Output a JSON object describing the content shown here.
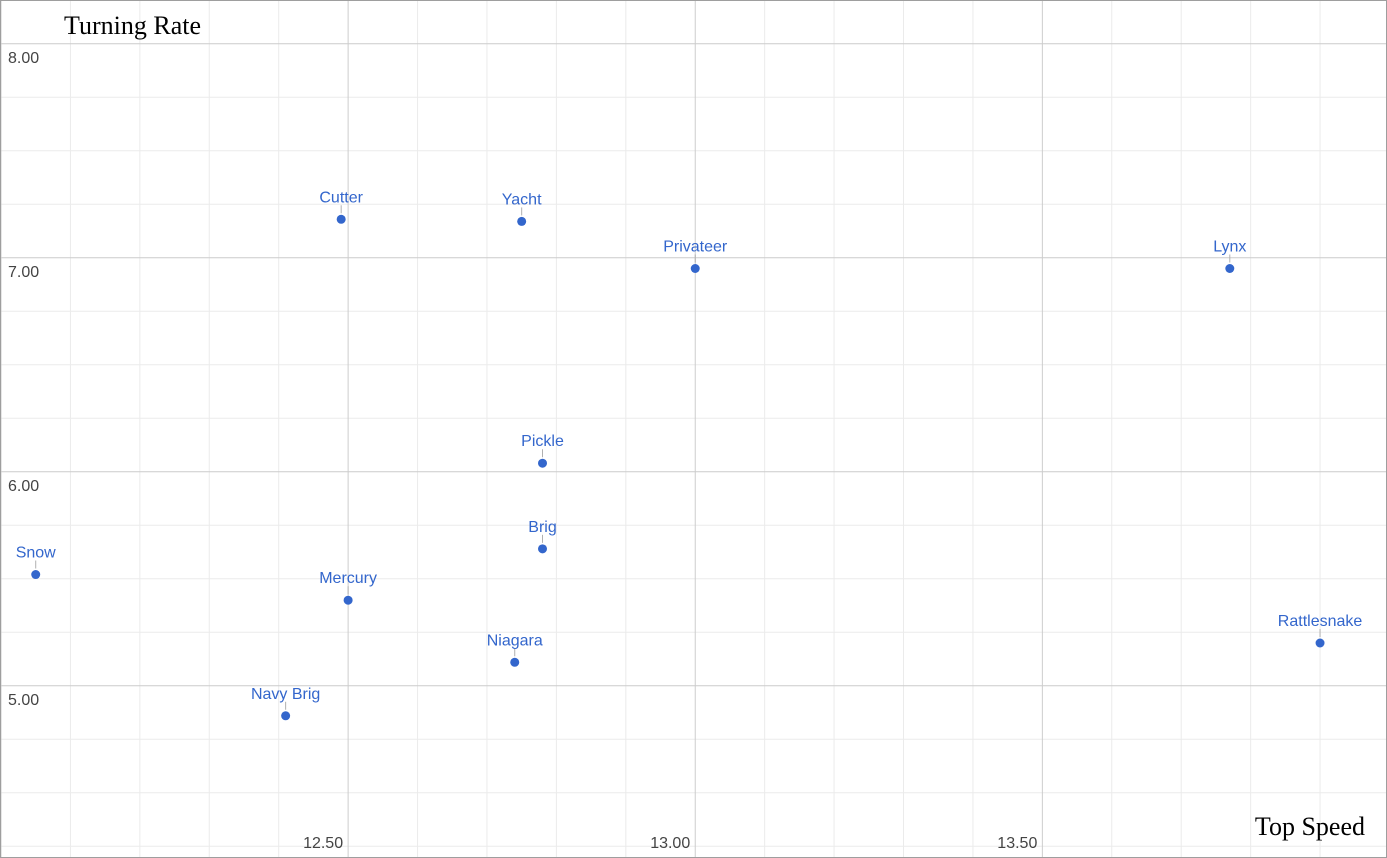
{
  "chart_data": {
    "type": "scatter",
    "title": "",
    "xlabel": "Top Speed",
    "ylabel": "Turning Rate",
    "xlim": [
      12.0,
      13.995
    ],
    "ylim": [
      4.2,
      8.2
    ],
    "x_ticks": [
      12.5,
      13.0,
      13.5
    ],
    "x_tick_labels": [
      "12.50",
      "13.00",
      "13.50"
    ],
    "y_ticks": [
      5.0,
      6.0,
      7.0,
      8.0
    ],
    "y_tick_labels": [
      "5.00",
      "6.00",
      "7.00",
      "8.00"
    ],
    "grid": true,
    "legend": "none",
    "colors": {
      "point": "#3366cc",
      "label": "#3366cc",
      "major_grid": "#cccccc",
      "minor_grid": "#ebebeb"
    },
    "points": [
      {
        "name": "Cutter",
        "x": 12.49,
        "y": 7.18
      },
      {
        "name": "Yacht",
        "x": 12.75,
        "y": 7.17
      },
      {
        "name": "Privateer",
        "x": 13.0,
        "y": 6.95
      },
      {
        "name": "Lynx",
        "x": 13.77,
        "y": 6.95
      },
      {
        "name": "Pickle",
        "x": 12.78,
        "y": 6.04
      },
      {
        "name": "Brig",
        "x": 12.78,
        "y": 5.64
      },
      {
        "name": "Snow",
        "x": 12.05,
        "y": 5.52
      },
      {
        "name": "Mercury",
        "x": 12.5,
        "y": 5.4
      },
      {
        "name": "Niagara",
        "x": 12.74,
        "y": 5.11
      },
      {
        "name": "Rattlesnake",
        "x": 13.9,
        "y": 5.2
      },
      {
        "name": "Navy Brig",
        "x": 12.41,
        "y": 4.86
      }
    ]
  }
}
